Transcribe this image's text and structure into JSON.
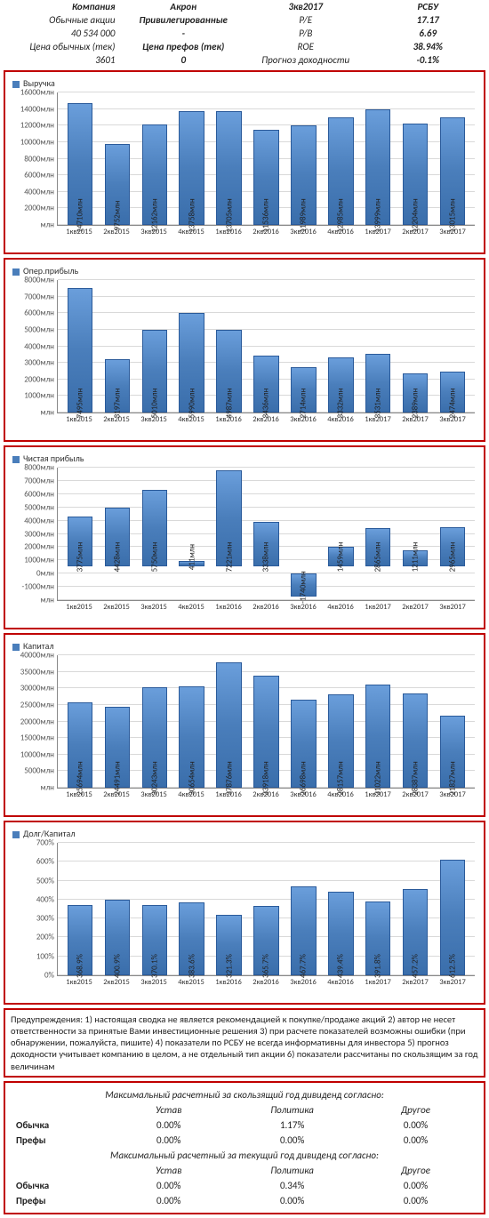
{
  "header": {
    "rows": [
      {
        "c1": "Компания",
        "c2": "Акрон",
        "c3": "3кв2017",
        "c4": "РСБУ"
      },
      {
        "c1": "Обычные акции",
        "c2": "Привилегированные",
        "c3": "P/E",
        "c4": "17.17"
      },
      {
        "c1": "40 534 000",
        "c2": "-",
        "c3": "P/B",
        "c4": "6.69"
      },
      {
        "c1": "Цена обычных (тек)",
        "c2": "Цена префов (тек)",
        "c3": "ROE",
        "c4": "38.94%"
      },
      {
        "c1": "3601",
        "c2": "0",
        "c3": "Прогноз доходности",
        "c4": "-0.1%"
      }
    ]
  },
  "categories": [
    "1кв2015",
    "2кв2015",
    "3кв2015",
    "4кв2015",
    "1кв2016",
    "2кв2016",
    "3кв2016",
    "4кв2016",
    "1кв2017",
    "2кв2017",
    "3кв2017"
  ],
  "charts": [
    {
      "title": "Выручка",
      "ymin": 0,
      "ymax": 16000,
      "ystep": 2000,
      "unit": "млн",
      "values": [
        14710,
        9752,
        12162,
        13758,
        13705,
        11536,
        11989,
        12985,
        13999,
        12204,
        13015
      ],
      "labels": [
        "14710млн",
        "9752млн",
        "12162млн",
        "13758млн",
        "13705млн",
        "11536млн",
        "11989млн",
        "12985млн",
        "13999млн",
        "12204млн",
        "13015млн"
      ],
      "bar_color": "#4a7ebb",
      "grid_color": "#d9d9d9",
      "bg": "#ffffff"
    },
    {
      "title": "Опер.прибыль",
      "ymin": 0,
      "ymax": 8000,
      "ystep": 1000,
      "unit": "млн",
      "values": [
        7495,
        3197,
        5010,
        5990,
        4987,
        3436,
        2714,
        3332,
        3531,
        2389,
        2474
      ],
      "labels": [
        "7495млн",
        "3197млн",
        "5010млн",
        "5990млн",
        "4987млн",
        "3436млн",
        "2714млн",
        "3332млн",
        "3531млн",
        "2389млн",
        "2474млн"
      ],
      "bar_color": "#4a7ebb",
      "grid_color": "#d9d9d9",
      "bg": "#ffffff"
    },
    {
      "title": "Чистая прибыль",
      "ymin": -2000,
      "ymax": 8000,
      "ystep": 1000,
      "unit": "млн",
      "values": [
        3775,
        4428,
        5750,
        411,
        7221,
        3338,
        -1740,
        1459,
        2865,
        1211,
        2965
      ],
      "labels": [
        "3775млн",
        "4428млн",
        "5750млн",
        "411млн",
        "7221млн",
        "3338млн",
        "-1740млн",
        "1459млн",
        "2865млн",
        "1211млн",
        "2965млн"
      ],
      "bar_color": "#4a7ebb",
      "grid_color": "#d9d9d9",
      "bg": "#ffffff"
    },
    {
      "title": "Капитал",
      "ymin": 0,
      "ymax": 40000,
      "ystep": 5000,
      "unit": "млн",
      "values": [
        25694,
        24491,
        30243,
        30654,
        37876,
        33918,
        26698,
        28157,
        31022,
        28387,
        21827
      ],
      "labels": [
        "25694млн",
        "24491млн",
        "30243млн",
        "30654млн",
        "37876млн",
        "33918млн",
        "26698млн",
        "28157млн",
        "31022млн",
        "28387млн",
        "21827млн"
      ],
      "bar_color": "#4a7ebb",
      "grid_color": "#d9d9d9",
      "bg": "#ffffff"
    },
    {
      "title": "Долг/Капитал",
      "ymin": 0,
      "ymax": 700,
      "ystep": 100,
      "unit": "%",
      "values": [
        368.9,
        400.9,
        370.1,
        383.6,
        321.3,
        365.7,
        467.7,
        439.4,
        391.8,
        457.2,
        612.5
      ],
      "labels": [
        "368.9%",
        "400.9%",
        "370.1%",
        "383.6%",
        "321.3%",
        "365.7%",
        "467.7%",
        "439.4%",
        "391.8%",
        "457.2%",
        "612.5%"
      ],
      "bar_color": "#4a7ebb",
      "grid_color": "#d9d9d9",
      "bg": "#ffffff"
    }
  ],
  "warning": "Предупреждения: 1) настоящая сводка не является рекомендацией к покупке/продаже акций 2) автор не несет ответственности за принятые Вами инвестиционные решения 3) при расчете показателей возможны ошибки (при обнаружении, пожалуйста, пишите) 4) показатели по РСБУ не всегда информативны для инвестора 5) прогноз доходности учитывает компанию в целом, а не отдельный тип акции 6) показатели рассчитаны по скользящим за год величинам",
  "dividends": {
    "header1": "Максимальный расчетный за скользящий год дивиденд согласно:",
    "header2": "Максимальный расчетный за текущий год дивиденд согласно:",
    "cols": [
      "Устав",
      "Политика",
      "Другое"
    ],
    "row_labels": [
      "Обычка",
      "Префы"
    ],
    "block1": [
      [
        "0.00%",
        "1.17%",
        "0.00%"
      ],
      [
        "0.00%",
        "0.00%",
        "0.00%"
      ]
    ],
    "block2": [
      [
        "0.00%",
        "0.34%",
        "0.00%"
      ],
      [
        "0.00%",
        "0.00%",
        "0.00%"
      ]
    ]
  }
}
